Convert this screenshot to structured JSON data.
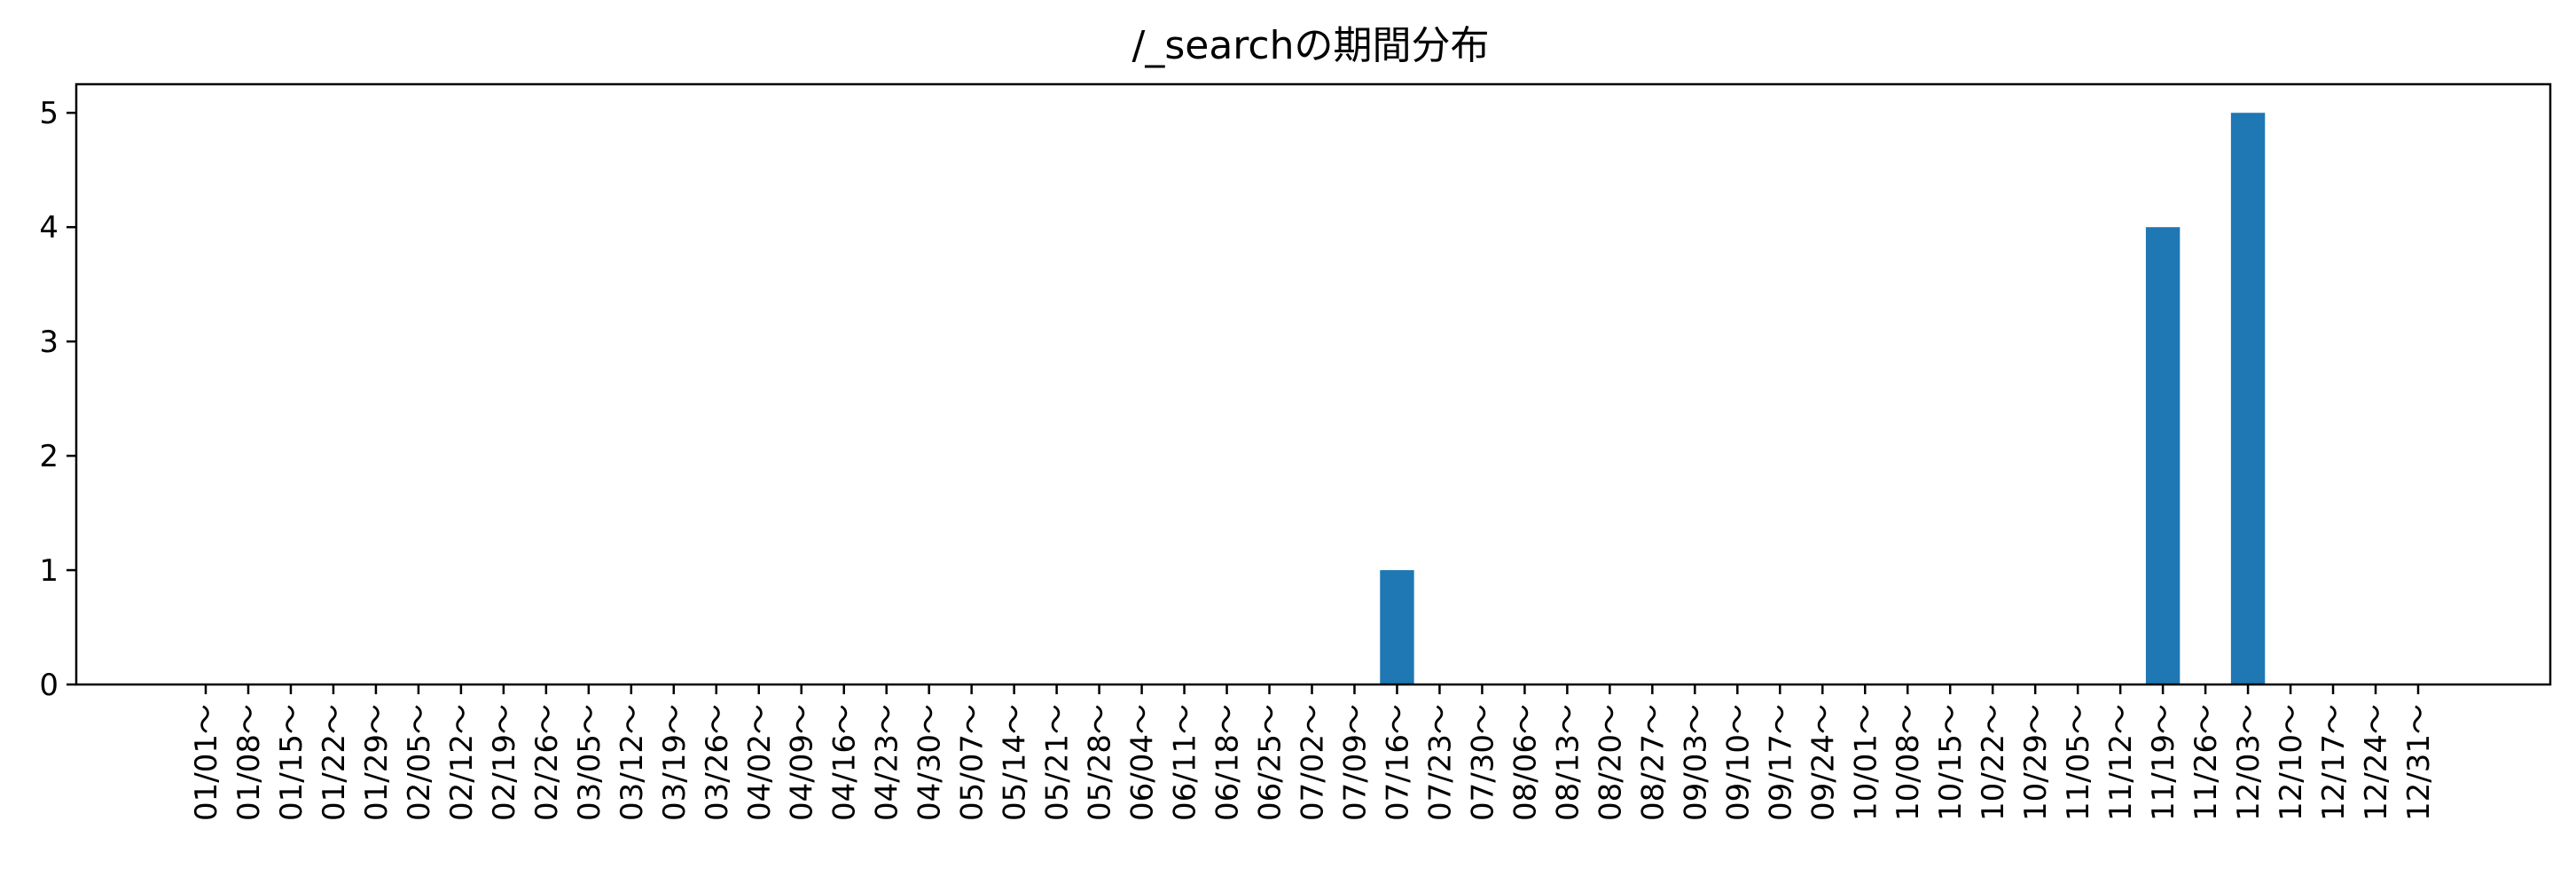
{
  "chart_data": {
    "type": "bar",
    "title": "/_searchの期間分布",
    "xlabel": "",
    "ylabel": "",
    "ylim": [
      0,
      5.25
    ],
    "yticks": [
      0,
      1,
      2,
      3,
      4,
      5
    ],
    "grid": false,
    "legend": "none",
    "categories": [
      "01/01～",
      "01/08～",
      "01/15～",
      "01/22～",
      "01/29～",
      "02/05～",
      "02/12～",
      "02/19～",
      "02/26～",
      "03/05～",
      "03/12～",
      "03/19～",
      "03/26～",
      "04/02～",
      "04/09～",
      "04/16～",
      "04/23～",
      "04/30～",
      "05/07～",
      "05/14～",
      "05/21～",
      "05/28～",
      "06/04～",
      "06/11～",
      "06/18～",
      "06/25～",
      "07/02～",
      "07/09～",
      "07/16～",
      "07/23～",
      "07/30～",
      "08/06～",
      "08/13～",
      "08/20～",
      "08/27～",
      "09/03～",
      "09/10～",
      "09/17～",
      "09/24～",
      "10/01～",
      "10/08～",
      "10/15～",
      "10/22～",
      "10/29～",
      "11/05～",
      "11/12～",
      "11/19～",
      "11/26～",
      "12/03～",
      "12/10～",
      "12/17～",
      "12/24～",
      "12/31～"
    ],
    "values": [
      0,
      0,
      0,
      0,
      0,
      0,
      0,
      0,
      0,
      0,
      0,
      0,
      0,
      0,
      0,
      0,
      0,
      0,
      0,
      0,
      0,
      0,
      0,
      0,
      0,
      0,
      0,
      0,
      1,
      0,
      0,
      0,
      0,
      0,
      0,
      0,
      0,
      0,
      0,
      0,
      0,
      0,
      0,
      0,
      0,
      0,
      4,
      0,
      5,
      0,
      0,
      0,
      0
    ],
    "bar_color": "#1f77b4"
  }
}
